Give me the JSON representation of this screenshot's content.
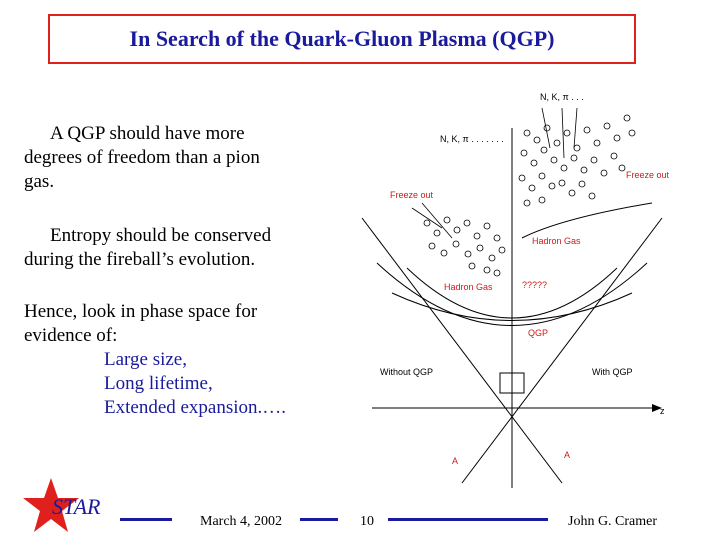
{
  "slide": {
    "title": "In Search of the Quark-Gluon Plasma (QGP)",
    "para1_line1": "A QGP should have more",
    "para1_line2": "degrees of freedom than a pion",
    "para1_line3": "gas.",
    "para2_line1": "Entropy should be conserved",
    "para2_line2": "during the fireball’s evolution.",
    "para3_line1": "Hence, look in phase space for",
    "para3_line2": "evidence of:",
    "list": [
      "Large size,",
      "Long lifetime,",
      "Extended expansion.…."
    ]
  },
  "diagram": {
    "label_nk_top": "N, K, π . . .",
    "label_nk_left": "N, K, π . . . . . . .",
    "freeze_out_left": "Freeze out",
    "freeze_out_right": "Freeze out",
    "hadron_gas_right": "Hadron Gas",
    "hadron_gas_left": "Hadron Gas",
    "unknown": "?????",
    "qgp": "QGP",
    "without_qgp": "Without QGP",
    "with_qgp": "With QGP",
    "axis_z": "z",
    "beam_a_left": "A",
    "beam_a_right": "A"
  },
  "footer": {
    "logo_text": "STAR",
    "date": "March 4, 2002",
    "page": "10",
    "author": "John G. Cramer"
  },
  "colors": {
    "title_border": "#e0201c",
    "title_text": "#1a1a9c",
    "footer_rule": "#1a1a9c",
    "star": "#e0201c",
    "diagram_label_red": "#d01818"
  }
}
